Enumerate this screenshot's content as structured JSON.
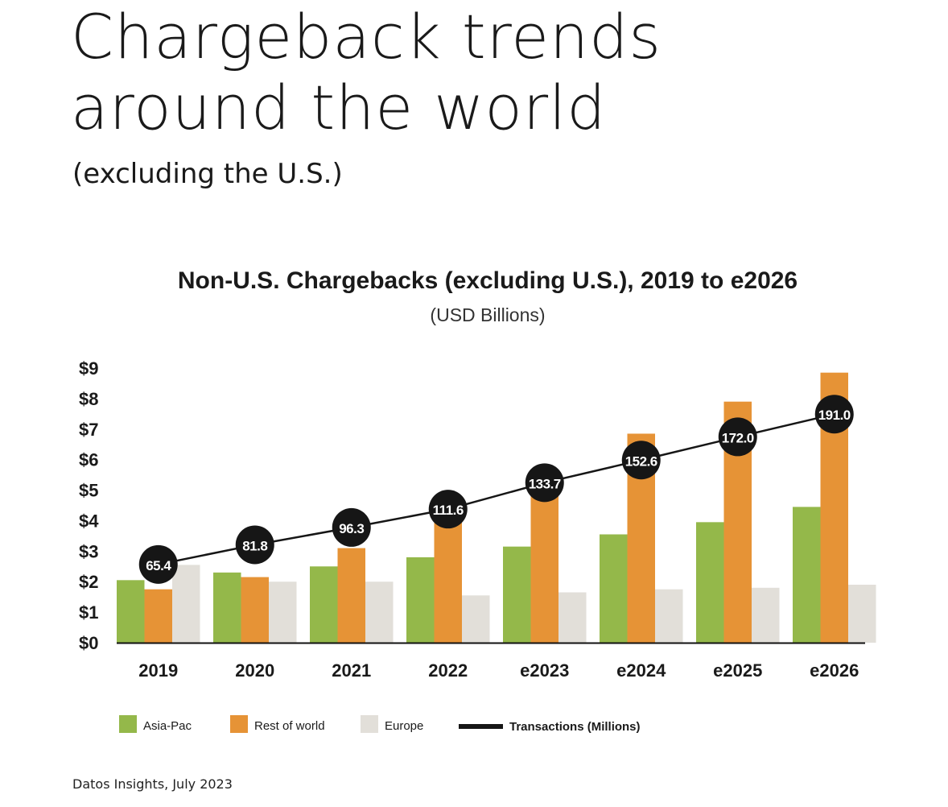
{
  "page": {
    "headline_line1": "Chargeback trends",
    "headline_line2": "around the world",
    "headline_sub": "(excluding the U.S.)",
    "source": "Datos Insights, July 2023"
  },
  "chart_data": {
    "type": "bar",
    "title": "Non-U.S. Chargebacks (excluding U.S.), 2019 to e2026",
    "subtitle": "(USD Billions)",
    "categories": [
      "2019",
      "2020",
      "2021",
      "2022",
      "e2023",
      "e2024",
      "e2025",
      "e2026"
    ],
    "ylim": [
      0,
      9
    ],
    "yticks": [
      "$0",
      "$1",
      "$2",
      "$3",
      "$4",
      "$5",
      "$6",
      "$7",
      "$8",
      "$9"
    ],
    "grid": false,
    "legend_placement": "bottom",
    "series": [
      {
        "name": "Asia-Pac",
        "color": "#94b84a",
        "values": [
          2.05,
          2.3,
          2.5,
          2.8,
          3.15,
          3.55,
          3.95,
          4.45
        ]
      },
      {
        "name": "Rest of world",
        "color": "#e69336",
        "values": [
          1.75,
          2.15,
          3.1,
          4.3,
          5.6,
          6.85,
          7.9,
          8.85
        ]
      },
      {
        "name": "Europe",
        "color": "#e2dfd9",
        "values": [
          2.55,
          2.0,
          2.0,
          1.55,
          1.65,
          1.75,
          1.8,
          1.9
        ]
      }
    ],
    "line_series": {
      "name": "Transactions (Millions)",
      "type": "line",
      "color": "#161616",
      "values": [
        65.4,
        81.8,
        96.3,
        111.6,
        133.7,
        152.6,
        172.0,
        191.0
      ],
      "labels": [
        "65.4",
        "81.8",
        "96.3",
        "111.6",
        "133.7",
        "152.6",
        "172.0",
        "191.0"
      ],
      "secondary_ylim": [
        0,
        229.5
      ]
    }
  }
}
